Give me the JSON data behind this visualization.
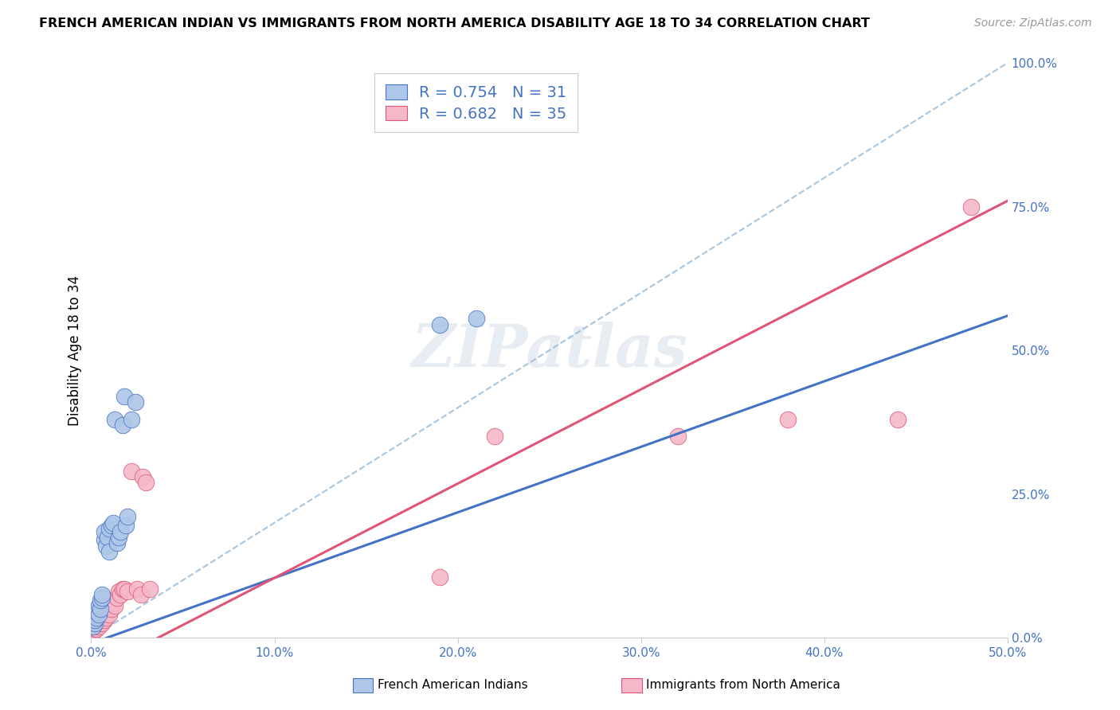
{
  "title": "FRENCH AMERICAN INDIAN VS IMMIGRANTS FROM NORTH AMERICA DISABILITY AGE 18 TO 34 CORRELATION CHART",
  "source": "Source: ZipAtlas.com",
  "ylabel_label": "Disability Age 18 to 34",
  "legend_label1": "French American Indians",
  "legend_label2": "Immigrants from North America",
  "R1": 0.754,
  "N1": 31,
  "R2": 0.682,
  "N2": 35,
  "color1": "#aec6e8",
  "color2": "#f4b8c8",
  "line_color1": "#4472c4",
  "line_color2": "#e05575",
  "dashed_color": "#90b8d8",
  "watermark": "ZIPatlas",
  "blue_scatter_x": [
    0.001,
    0.002,
    0.002,
    0.003,
    0.003,
    0.004,
    0.004,
    0.005,
    0.005,
    0.006,
    0.006,
    0.007,
    0.007,
    0.008,
    0.009,
    0.01,
    0.01,
    0.011,
    0.012,
    0.013,
    0.014,
    0.015,
    0.016,
    0.017,
    0.018,
    0.019,
    0.02,
    0.022,
    0.024,
    0.19,
    0.21
  ],
  "blue_scatter_y": [
    0.02,
    0.025,
    0.03,
    0.035,
    0.045,
    0.04,
    0.055,
    0.05,
    0.065,
    0.07,
    0.075,
    0.17,
    0.185,
    0.16,
    0.175,
    0.15,
    0.19,
    0.195,
    0.2,
    0.38,
    0.165,
    0.175,
    0.185,
    0.37,
    0.42,
    0.195,
    0.21,
    0.38,
    0.41,
    0.545,
    0.555
  ],
  "pink_scatter_x": [
    0.001,
    0.002,
    0.003,
    0.003,
    0.004,
    0.005,
    0.005,
    0.006,
    0.007,
    0.007,
    0.008,
    0.009,
    0.01,
    0.011,
    0.011,
    0.012,
    0.013,
    0.014,
    0.015,
    0.016,
    0.017,
    0.018,
    0.02,
    0.022,
    0.025,
    0.027,
    0.028,
    0.03,
    0.032,
    0.19,
    0.22,
    0.32,
    0.38,
    0.44,
    0.48
  ],
  "pink_scatter_y": [
    0.01,
    0.015,
    0.015,
    0.025,
    0.02,
    0.025,
    0.035,
    0.025,
    0.03,
    0.04,
    0.035,
    0.06,
    0.04,
    0.05,
    0.065,
    0.06,
    0.055,
    0.07,
    0.08,
    0.075,
    0.085,
    0.085,
    0.08,
    0.29,
    0.085,
    0.075,
    0.28,
    0.27,
    0.085,
    0.105,
    0.35,
    0.35,
    0.38,
    0.38,
    0.75
  ],
  "blue_line": [
    0.0,
    0.5,
    -0.01,
    0.56
  ],
  "pink_line": [
    0.0,
    0.5,
    -0.06,
    0.76
  ],
  "xlim": [
    0.0,
    0.5
  ],
  "ylim": [
    0.0,
    1.0
  ],
  "x_ticks": [
    0.0,
    0.1,
    0.2,
    0.3,
    0.4,
    0.5
  ],
  "x_tick_labels": [
    "0.0%",
    "10.0%",
    "20.0%",
    "30.0%",
    "40.0%",
    "50.0%"
  ],
  "y_ticks": [
    0.0,
    0.25,
    0.5,
    0.75,
    1.0
  ],
  "y_tick_labels": [
    "0.0%",
    "25.0%",
    "50.0%",
    "75.0%",
    "100.0%"
  ]
}
